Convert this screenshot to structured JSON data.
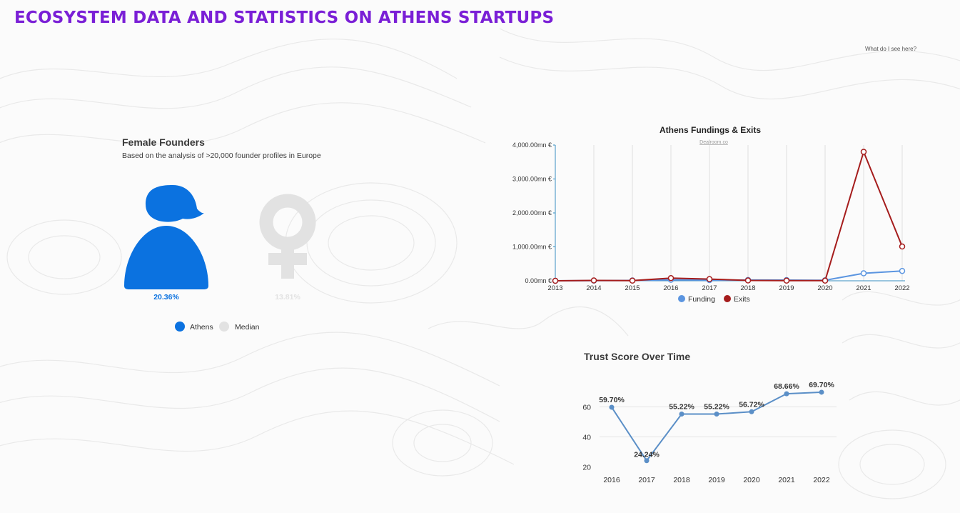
{
  "page": {
    "title": "ECOSYSTEM DATA AND STATISTICS ON ATHENS STARTUPS",
    "help_link": "What do I see here?"
  },
  "female_founders": {
    "title": "Female Founders",
    "subtitle": "Based on the analysis of >20,000 founder profiles in Europe",
    "athens_value": "20.36%",
    "median_value": "13.81%",
    "colors": {
      "athens": "#0b72e0",
      "median": "#e2e2e2"
    },
    "legend": [
      {
        "label": "Athens",
        "color": "#0b72e0"
      },
      {
        "label": "Median",
        "color": "#e2e2e2"
      }
    ]
  },
  "chart_data": [
    {
      "type": "line",
      "title": "Athens Fundings & Exits",
      "subtitle": "Dealroom.co",
      "x": [
        2013,
        2014,
        2015,
        2016,
        2017,
        2018,
        2019,
        2020,
        2021,
        2022
      ],
      "x_tick_labels": [
        "2013",
        "2014",
        "2015",
        "2016",
        "2017",
        "2018",
        "2019",
        "2020",
        "2021",
        "2022"
      ],
      "ylim": [
        0,
        4000
      ],
      "y_ticks": [
        0,
        1000,
        2000,
        3000,
        4000
      ],
      "y_tick_labels": [
        "0.00mn €",
        "1,000.00mn €",
        "2,000.00mn €",
        "3,000.00mn €",
        "4,000.00mn €"
      ],
      "grid": "vertical",
      "legend_position": "bottom",
      "series": [
        {
          "name": "Funding",
          "color": "#5b95e0",
          "values": [
            0,
            5,
            10,
            30,
            20,
            25,
            20,
            15,
            220,
            290
          ]
        },
        {
          "name": "Exits",
          "color": "#a51c1c",
          "values": [
            0,
            10,
            5,
            80,
            50,
            10,
            5,
            5,
            3800,
            1010
          ]
        }
      ]
    },
    {
      "type": "line",
      "title": "Trust Score Over Time",
      "x": [
        2016,
        2017,
        2018,
        2019,
        2020,
        2021,
        2022
      ],
      "x_tick_labels": [
        "2016",
        "2017",
        "2018",
        "2019",
        "2020",
        "2021",
        "2022"
      ],
      "ylim": [
        17,
        73
      ],
      "y_ticks": [
        20,
        40,
        60
      ],
      "y_tick_labels": [
        "20",
        "40",
        "60"
      ],
      "grid": "horizontal",
      "series": [
        {
          "color": "#5b8fc7",
          "values": [
            59.7,
            24.24,
            55.22,
            55.22,
            56.72,
            68.66,
            69.7
          ],
          "data_labels": [
            "59.70%",
            "24.24%",
            "55.22%",
            "55.22%",
            "56.72%",
            "68.66%",
            "69.70%"
          ]
        }
      ]
    }
  ]
}
